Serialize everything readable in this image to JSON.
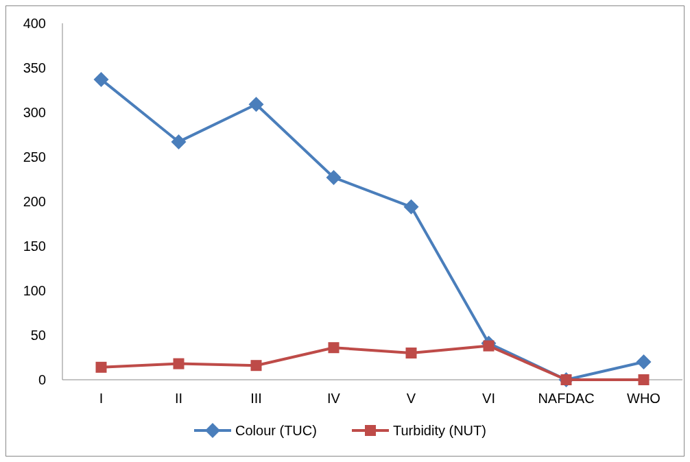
{
  "chart_data": {
    "type": "line",
    "categories": [
      "I",
      "II",
      "III",
      "IV",
      "V",
      "VI",
      "NAFDAC",
      "WHO"
    ],
    "series": [
      {
        "name": "Colour (TUC)",
        "color": "#4a7ebb",
        "marker": "diamond",
        "values": [
          337,
          267,
          309,
          227,
          194,
          41,
          0,
          20
        ]
      },
      {
        "name": "Turbidity (NUT)",
        "color": "#be4b48",
        "marker": "square",
        "values": [
          14,
          18,
          16,
          36,
          30,
          38,
          0,
          0
        ]
      }
    ],
    "ylim": [
      0,
      400
    ],
    "yticks": [
      0,
      50,
      100,
      150,
      200,
      250,
      300,
      350,
      400
    ],
    "grid": false,
    "legend": "bottom",
    "line_style": "solid"
  }
}
